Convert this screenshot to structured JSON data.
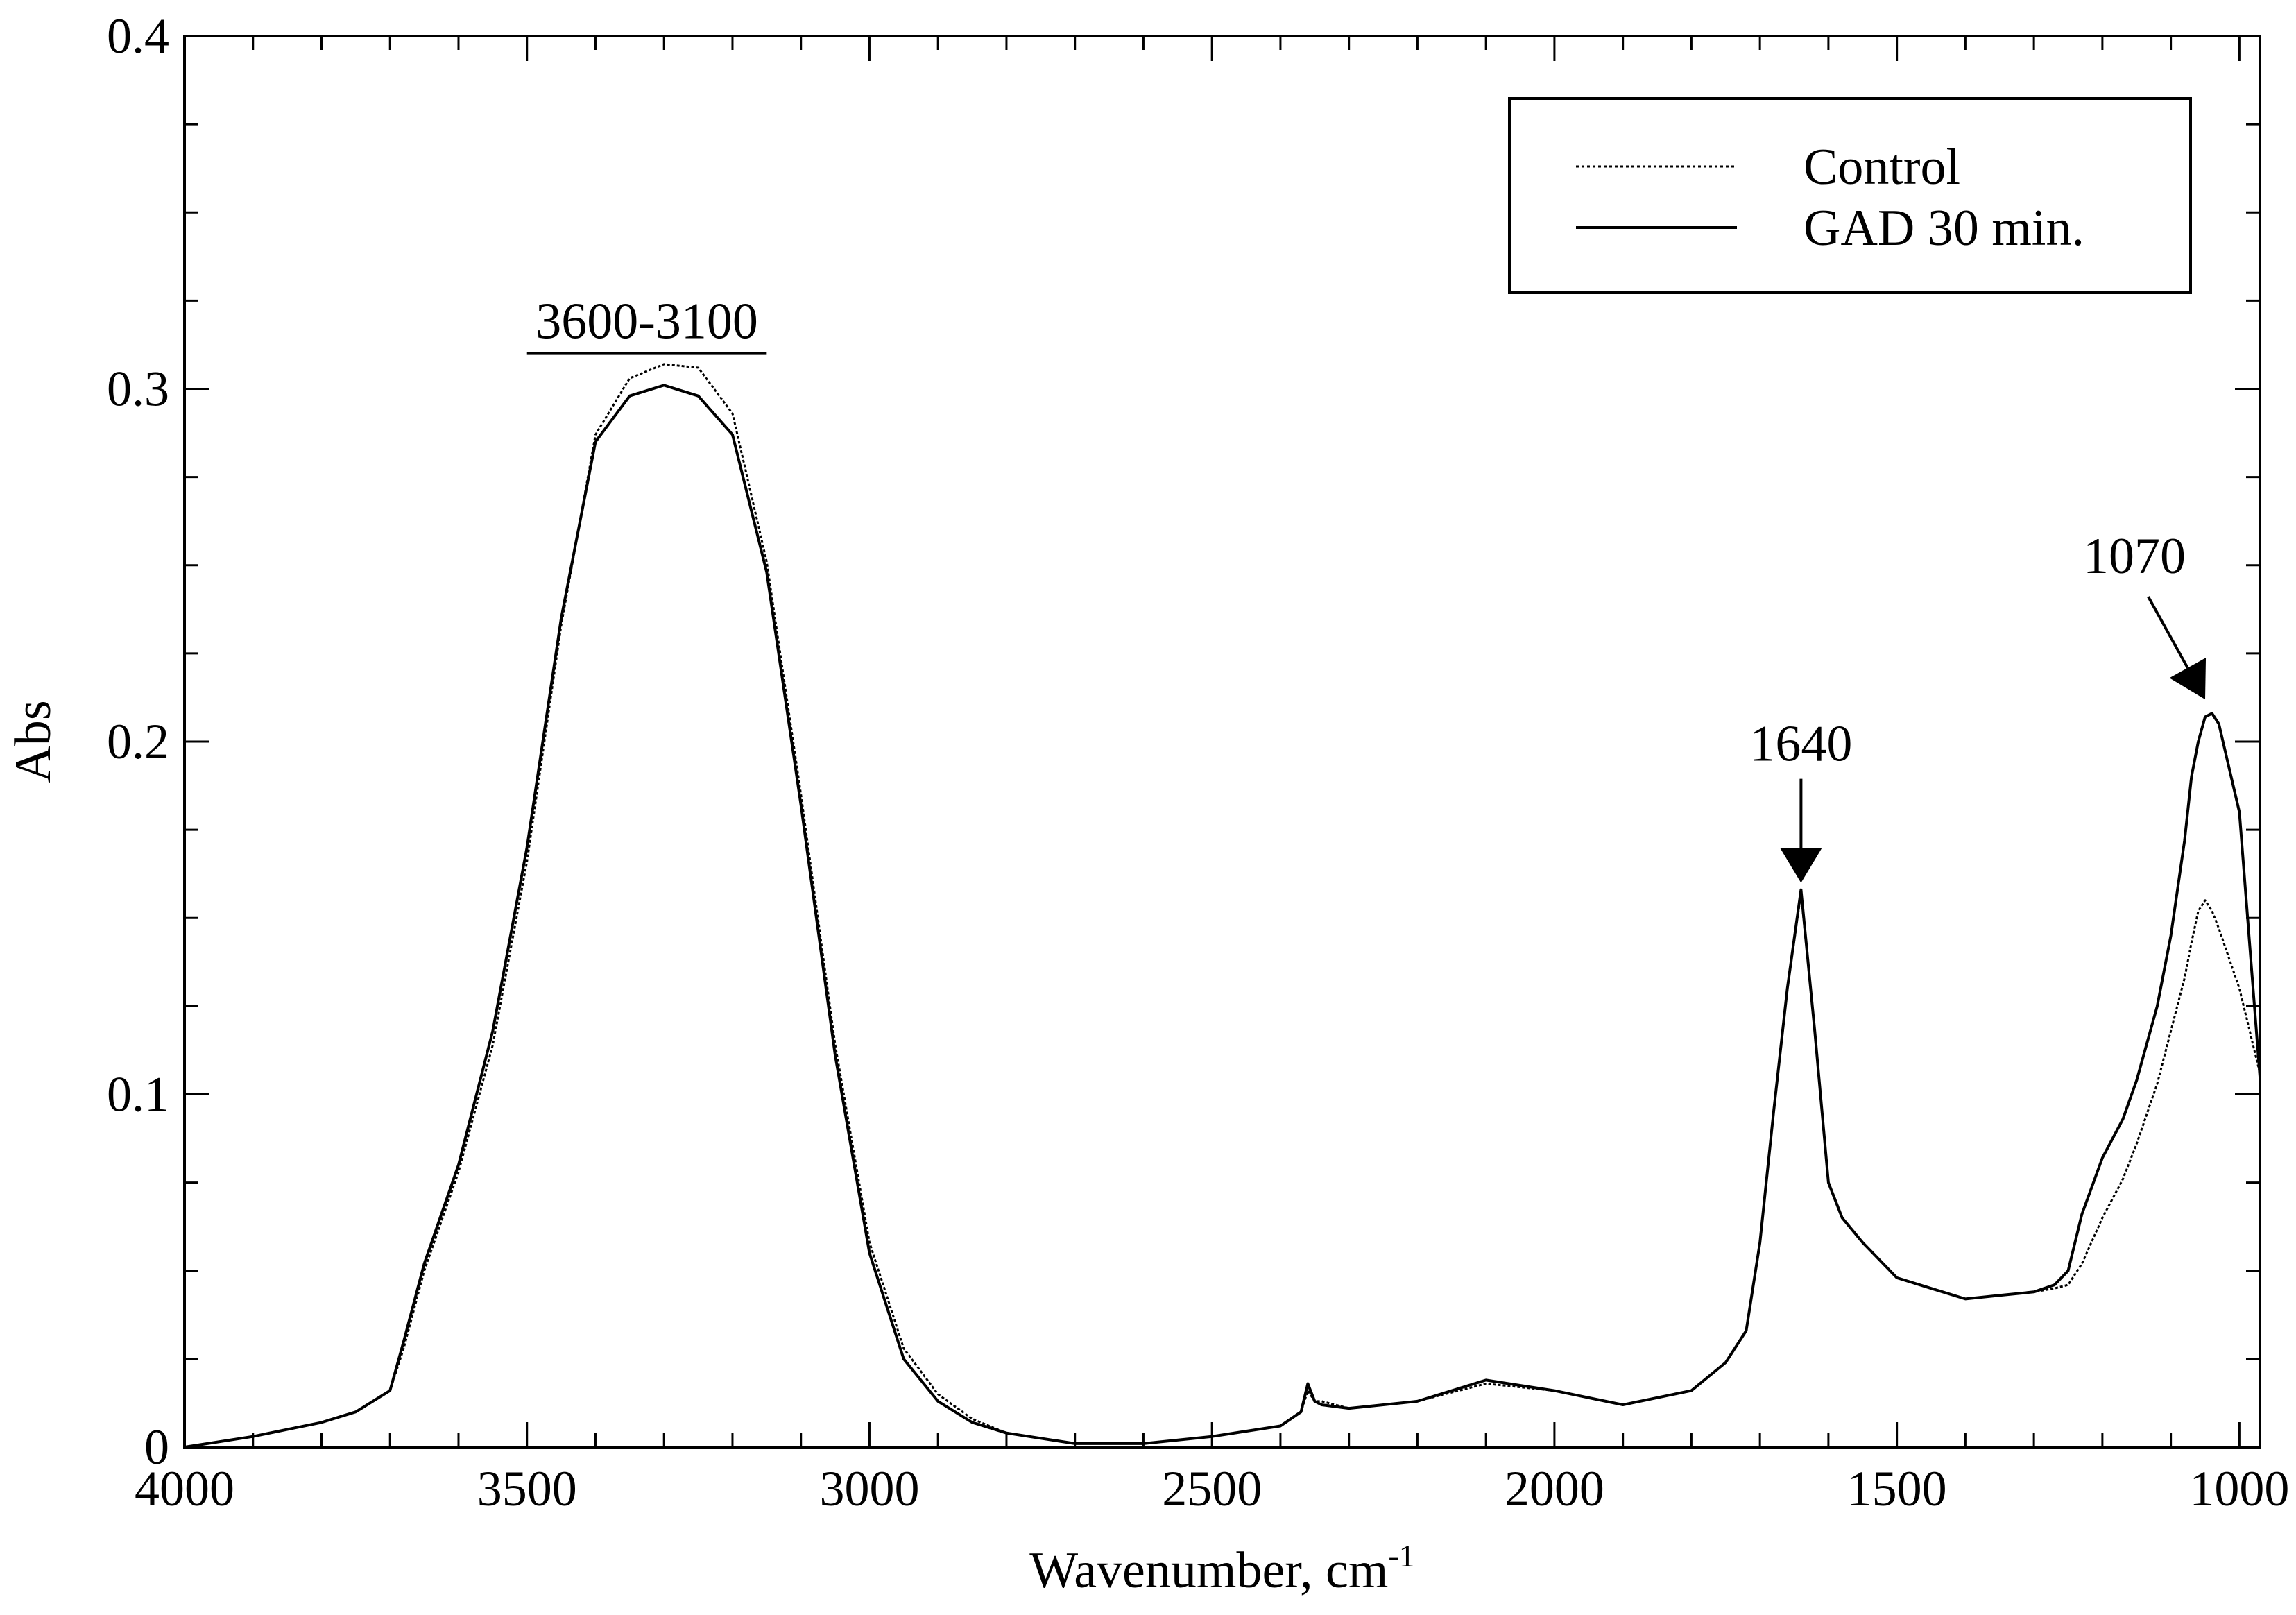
{
  "chart_data": {
    "type": "line",
    "xlabel": "Wavenumber, cm",
    "xlabel_superscript": "-1",
    "ylabel": "Abs",
    "xlim": [
      4000,
      970
    ],
    "ylim": [
      0,
      0.4
    ],
    "x_ticks": [
      4000,
      3500,
      3000,
      2500,
      2000,
      1500,
      1000
    ],
    "x_tick_labels": [
      "4000",
      "3500",
      "3000",
      "2500",
      "2000",
      "1500",
      "1000"
    ],
    "y_ticks": [
      0,
      0.1,
      0.2,
      0.3,
      0.4
    ],
    "y_tick_labels": [
      "0",
      "0.1",
      "0.2",
      "0.3",
      "0.4"
    ],
    "grid": false,
    "legend_position": "top-right",
    "series": [
      {
        "name": "Control",
        "style": "dotted",
        "x": [
          4000,
          3900,
          3800,
          3750,
          3700,
          3680,
          3650,
          3600,
          3550,
          3500,
          3450,
          3400,
          3350,
          3300,
          3250,
          3200,
          3150,
          3100,
          3050,
          3000,
          2950,
          2900,
          2850,
          2800,
          2700,
          2600,
          2500,
          2400,
          2370,
          2360,
          2350,
          2340,
          2300,
          2200,
          2100,
          2000,
          1900,
          1800,
          1750,
          1720,
          1700,
          1680,
          1660,
          1640,
          1620,
          1600,
          1580,
          1550,
          1500,
          1450,
          1400,
          1350,
          1300,
          1270,
          1250,
          1230,
          1200,
          1170,
          1150,
          1120,
          1100,
          1080,
          1070,
          1060,
          1050,
          1040,
          1030,
          1000,
          970
        ],
        "y": [
          0.0,
          0.003,
          0.007,
          0.01,
          0.016,
          0.028,
          0.05,
          0.078,
          0.114,
          0.166,
          0.233,
          0.287,
          0.303,
          0.307,
          0.306,
          0.293,
          0.251,
          0.185,
          0.114,
          0.058,
          0.028,
          0.015,
          0.008,
          0.004,
          0.001,
          0.001,
          0.003,
          0.006,
          0.01,
          0.016,
          0.013,
          0.013,
          0.011,
          0.013,
          0.018,
          0.016,
          0.012,
          0.016,
          0.024,
          0.033,
          0.058,
          0.095,
          0.13,
          0.157,
          0.118,
          0.075,
          0.065,
          0.058,
          0.048,
          0.045,
          0.042,
          0.043,
          0.044,
          0.045,
          0.046,
          0.052,
          0.065,
          0.076,
          0.086,
          0.103,
          0.118,
          0.133,
          0.143,
          0.152,
          0.155,
          0.152,
          0.147,
          0.13,
          0.106
        ]
      },
      {
        "name": "GAD 30 min.",
        "style": "solid",
        "x": [
          4000,
          3900,
          3800,
          3750,
          3700,
          3680,
          3650,
          3600,
          3550,
          3500,
          3450,
          3400,
          3350,
          3300,
          3250,
          3200,
          3150,
          3100,
          3050,
          3000,
          2950,
          2900,
          2850,
          2800,
          2700,
          2600,
          2500,
          2400,
          2370,
          2360,
          2350,
          2340,
          2300,
          2200,
          2100,
          2000,
          1900,
          1800,
          1750,
          1720,
          1700,
          1680,
          1660,
          1640,
          1620,
          1600,
          1580,
          1550,
          1500,
          1450,
          1400,
          1350,
          1300,
          1270,
          1250,
          1230,
          1200,
          1170,
          1150,
          1120,
          1100,
          1080,
          1070,
          1060,
          1050,
          1040,
          1030,
          1000,
          970
        ],
        "y": [
          0.0,
          0.003,
          0.007,
          0.01,
          0.016,
          0.03,
          0.052,
          0.08,
          0.118,
          0.17,
          0.235,
          0.285,
          0.298,
          0.301,
          0.298,
          0.287,
          0.248,
          0.182,
          0.111,
          0.055,
          0.025,
          0.013,
          0.007,
          0.004,
          0.001,
          0.001,
          0.003,
          0.006,
          0.01,
          0.018,
          0.013,
          0.012,
          0.011,
          0.013,
          0.019,
          0.016,
          0.012,
          0.016,
          0.024,
          0.033,
          0.058,
          0.095,
          0.13,
          0.158,
          0.118,
          0.075,
          0.065,
          0.058,
          0.048,
          0.045,
          0.042,
          0.043,
          0.044,
          0.046,
          0.05,
          0.066,
          0.082,
          0.093,
          0.104,
          0.125,
          0.145,
          0.172,
          0.19,
          0.2,
          0.207,
          0.208,
          0.205,
          0.18,
          0.105
        ]
      }
    ],
    "annotations": [
      {
        "text": "3600-3100",
        "type": "bracket",
        "x_from": 3500,
        "x_to": 3150,
        "y": 0.31
      },
      {
        "text": "1640",
        "type": "arrow",
        "x": 1640,
        "y": 0.158
      },
      {
        "text": "1070",
        "type": "arrow",
        "x": 1050,
        "y": 0.21
      }
    ]
  }
}
